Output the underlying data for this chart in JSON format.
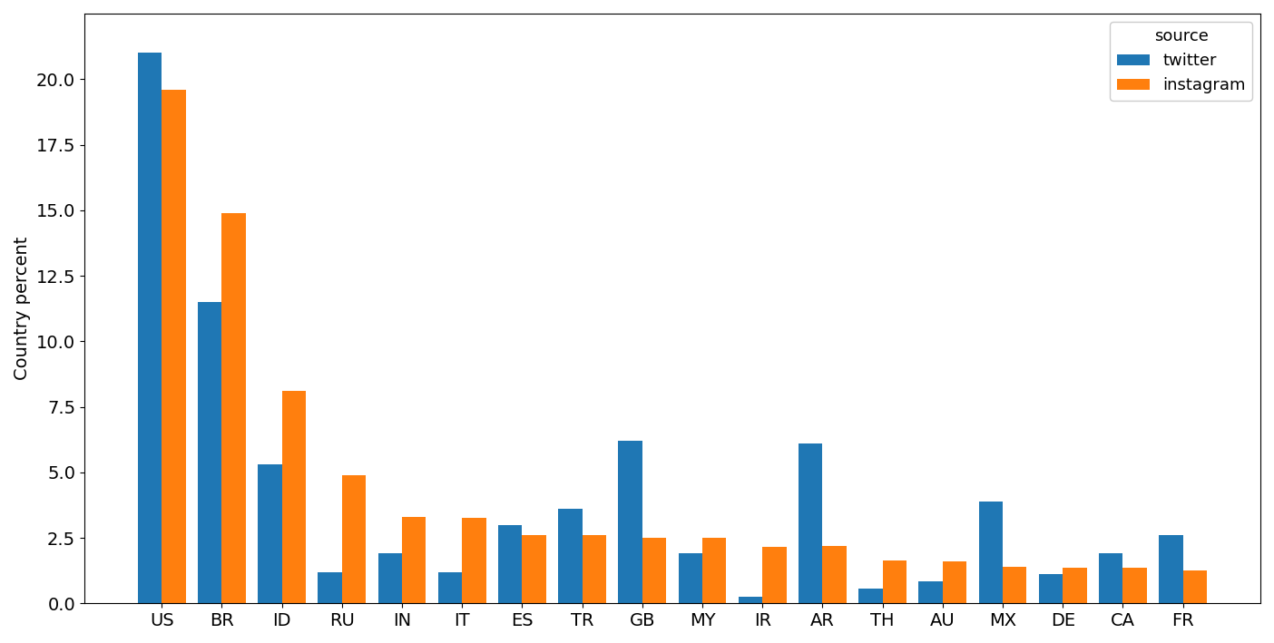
{
  "categories": [
    "US",
    "BR",
    "ID",
    "RU",
    "IN",
    "IT",
    "ES",
    "TR",
    "GB",
    "MY",
    "IR",
    "AR",
    "TH",
    "AU",
    "MX",
    "DE",
    "CA",
    "FR"
  ],
  "twitter": [
    21.0,
    11.5,
    5.3,
    1.2,
    1.9,
    1.2,
    3.0,
    3.6,
    6.2,
    1.9,
    0.25,
    6.1,
    0.55,
    0.85,
    3.9,
    1.1,
    1.9,
    2.6
  ],
  "instagram": [
    19.6,
    14.9,
    8.1,
    4.9,
    3.3,
    3.25,
    2.6,
    2.6,
    2.5,
    2.5,
    2.15,
    2.2,
    1.65,
    1.6,
    1.4,
    1.35,
    1.35,
    1.25
  ],
  "twitter_color": "#1f77b4",
  "instagram_color": "#ff7f0e",
  "ylabel": "Country percent",
  "legend_title": "source",
  "legend_twitter": "twitter",
  "legend_instagram": "instagram",
  "ylim": [
    0,
    22.5
  ],
  "yticks": [
    0.0,
    2.5,
    5.0,
    7.5,
    10.0,
    12.5,
    15.0,
    17.5,
    20.0
  ],
  "bar_width": 0.4,
  "figsize": [
    14.04,
    7.09
  ],
  "dpi": 100
}
